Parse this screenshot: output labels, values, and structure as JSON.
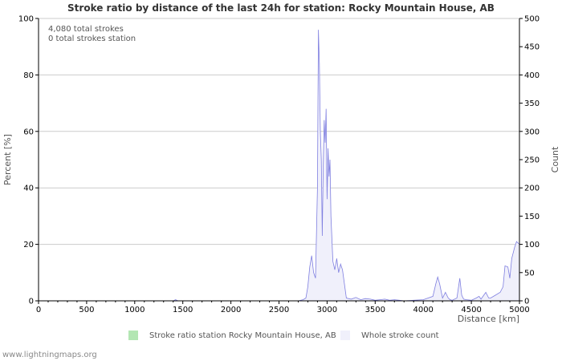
{
  "chart_data": {
    "type": "area",
    "title": "Stroke ratio by distance of the last 24h for station: Rocky Mountain House, AB",
    "xlabel": "Distance",
    "xunit": "[km]",
    "ylabel_left": "Percent",
    "ylabel_left_unit": "[%]",
    "ylabel_right": "Count",
    "xlim": [
      0,
      5000
    ],
    "ylim_left": [
      0,
      100
    ],
    "ylim_right": [
      0,
      500
    ],
    "x_ticks": [
      "0",
      "500",
      "1000",
      "1500",
      "2000",
      "2500",
      "3000",
      "3500",
      "4000",
      "4500",
      "5000"
    ],
    "y_left_ticks": [
      "0",
      "20",
      "40",
      "60",
      "80",
      "100"
    ],
    "y_right_ticks": [
      "0",
      "50",
      "100",
      "150",
      "200",
      "250",
      "300",
      "350",
      "400",
      "450",
      "500"
    ],
    "annotations": [
      "4,080 total strokes",
      "0 total strokes station"
    ],
    "series": [
      {
        "name": "Stroke ratio station Rocky Mountain House, AB",
        "axis": "left",
        "color": "#b3e6b3",
        "x": [
          0,
          5000
        ],
        "values": [
          0,
          0
        ]
      },
      {
        "name": "Whole stroke count",
        "axis": "right",
        "color": "#f0f0fb",
        "stroke": "#7f7fe0",
        "x": [
          0,
          1400,
          1425,
          1450,
          2700,
          2750,
          2780,
          2800,
          2820,
          2840,
          2860,
          2880,
          2900,
          2910,
          2920,
          2930,
          2940,
          2950,
          2960,
          2970,
          2980,
          2990,
          3000,
          3010,
          3020,
          3030,
          3040,
          3060,
          3080,
          3100,
          3120,
          3140,
          3160,
          3180,
          3200,
          3250,
          3300,
          3350,
          3400,
          3450,
          3500,
          3550,
          3600,
          3650,
          3700,
          3750,
          3800,
          3900,
          4000,
          4100,
          4130,
          4150,
          4170,
          4200,
          4230,
          4260,
          4280,
          4300,
          4350,
          4380,
          4400,
          4420,
          4450,
          4500,
          4550,
          4580,
          4600,
          4650,
          4680,
          4700,
          4750,
          4800,
          4830,
          4850,
          4880,
          4900,
          4920,
          4950,
          4970,
          5000
        ],
        "values": [
          0,
          0,
          2,
          0,
          0,
          2,
          5,
          25,
          60,
          80,
          50,
          40,
          200,
          480,
          420,
          300,
          250,
          115,
          240,
          320,
          280,
          340,
          180,
          270,
          220,
          250,
          150,
          70,
          55,
          75,
          50,
          65,
          55,
          30,
          5,
          3,
          6,
          2,
          4,
          3,
          1,
          2,
          3,
          1,
          2,
          1,
          0,
          1,
          2,
          8,
          30,
          42,
          30,
          5,
          15,
          5,
          2,
          1,
          5,
          40,
          10,
          3,
          2,
          1,
          5,
          8,
          3,
          15,
          5,
          5,
          10,
          15,
          25,
          62,
          60,
          40,
          75,
          95,
          105,
          100
        ]
      }
    ],
    "legend_position": "bottom"
  },
  "footer": "www.lightningmaps.org"
}
